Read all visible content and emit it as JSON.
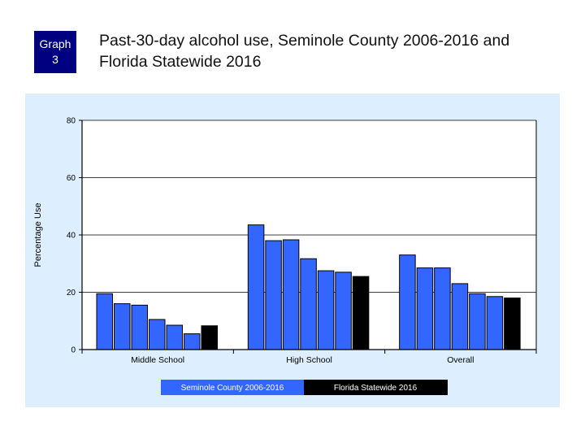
{
  "badge": {
    "line1": "Graph",
    "line2": "3"
  },
  "chart_data": {
    "type": "bar",
    "title": "Past-30-day alcohol use, Seminole County 2006-2016 and Florida Statewide 2016",
    "title_line1": "Past-30-day alcohol use, Seminole County 2006-2016 and",
    "title_line2": "Florida Statewide 2016",
    "ylabel": "Percentage Use",
    "xlabel": "",
    "ylim": [
      0,
      80
    ],
    "yticks": [
      0,
      20,
      40,
      60,
      80
    ],
    "categories": [
      "Middle School",
      "High School",
      "Overall"
    ],
    "series": [
      {
        "name": "Seminole County 2006-2016",
        "color": "#3366ff",
        "values": [
          [
            19.5,
            16,
            15.5,
            10.5,
            8.5,
            5.5
          ],
          [
            43.5,
            38,
            38.3,
            31.7,
            27.5,
            27
          ],
          [
            33,
            28.5,
            28.5,
            23,
            19.5,
            18.5
          ]
        ]
      },
      {
        "name": "Florida Statewide 2016",
        "color": "#000000",
        "values": [
          8.3,
          25.5,
          18
        ]
      }
    ],
    "grid": true,
    "legend_position": "bottom"
  }
}
